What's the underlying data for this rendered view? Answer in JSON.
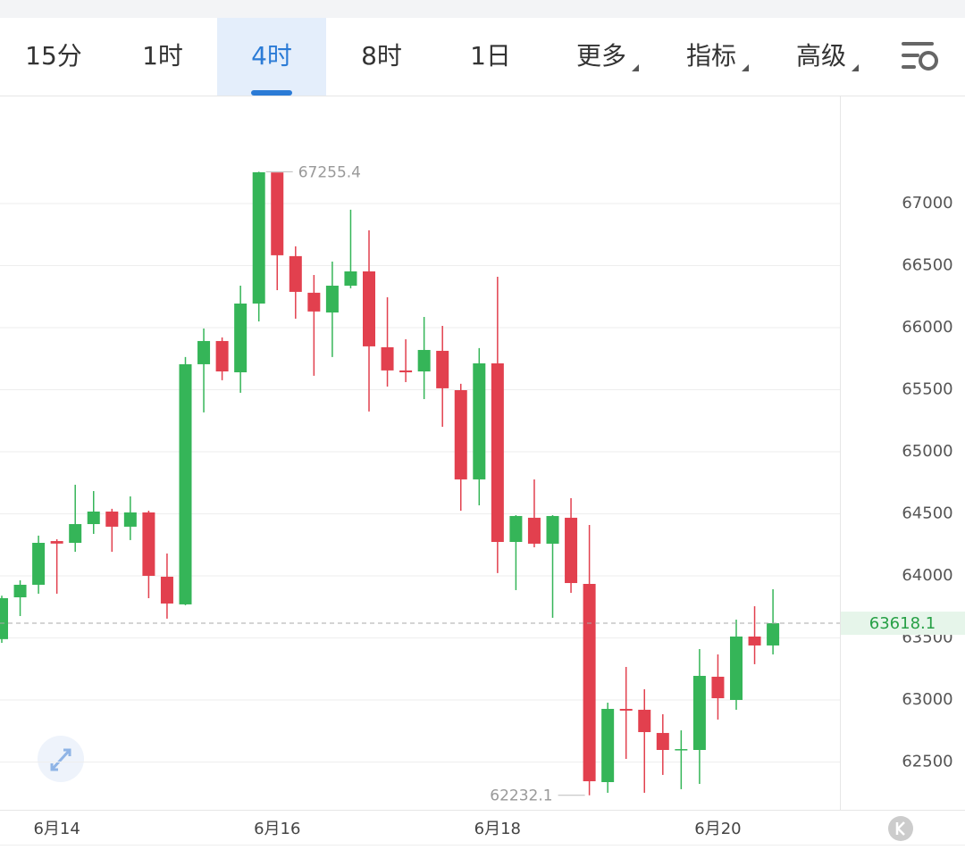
{
  "tabs": [
    {
      "label": "15分",
      "menu": false
    },
    {
      "label": "1时",
      "menu": false
    },
    {
      "label": "4时",
      "menu": false
    },
    {
      "label": "8时",
      "menu": false
    },
    {
      "label": "1日",
      "menu": false
    },
    {
      "label": "更多",
      "menu": true
    },
    {
      "label": "指标",
      "menu": true
    },
    {
      "label": "高级",
      "menu": true
    }
  ],
  "selected_tab": 2,
  "chart_data": {
    "type": "candlestick",
    "categories": [
      null,
      null,
      null,
      "6月14",
      null,
      null,
      null,
      null,
      null,
      null,
      null,
      null,
      null,
      null,
      null,
      "6月16",
      null,
      null,
      null,
      null,
      null,
      null,
      null,
      null,
      null,
      null,
      null,
      "6月18",
      null,
      null,
      null,
      null,
      null,
      null,
      null,
      null,
      null,
      null,
      null,
      "6月20",
      null,
      null,
      null
    ],
    "open": [
      63490,
      63827,
      63928,
      64280,
      64266,
      64417,
      64518,
      64396,
      64511,
      63993,
      63770,
      65705,
      65892,
      65640,
      66194,
      67250,
      66576,
      66281,
      66122,
      66338,
      66453,
      65842,
      65655,
      65647,
      65813,
      65496,
      64777,
      65712,
      64273,
      64468,
      64259,
      64468,
      63935,
      62338,
      62928,
      62921,
      62734,
      62597,
      62597,
      63187,
      63000,
      63511,
      63439
    ],
    "high": [
      63840,
      63964,
      64324,
      64295,
      64734,
      64683,
      64540,
      64640,
      64525,
      64180,
      65763,
      65993,
      65921,
      66338,
      67255.4,
      67240,
      66655,
      66424,
      66532,
      66950,
      66784,
      66245,
      65906,
      66086,
      66014,
      65547,
      65835,
      66410,
      64489,
      64777,
      64489,
      64626,
      64410,
      62978,
      63266,
      63086,
      62885,
      62755,
      63410,
      63367,
      63647,
      63755,
      63892
    ],
    "low": [
      63460,
      63676,
      63856,
      63856,
      64194,
      64338,
      64194,
      64288,
      63820,
      63655,
      63763,
      65317,
      65576,
      65475,
      66050,
      66302,
      66072,
      65612,
      65763,
      66317,
      65324,
      65525,
      65561,
      65424,
      65201,
      64525,
      64568,
      64022,
      63885,
      64230,
      63662,
      63863,
      62232.1,
      62252,
      62525,
      62252,
      62396,
      62281,
      62324,
      62842,
      62921,
      63288,
      63367
    ],
    "close": [
      63820,
      63928,
      64266,
      64260,
      64417,
      64518,
      64396,
      64511,
      64000,
      63777,
      65705,
      65892,
      65647,
      66194,
      67252,
      66583,
      66288,
      66130,
      66338,
      66453,
      65849,
      65655,
      65640,
      65820,
      65511,
      64777,
      65712,
      64273,
      64482,
      64259,
      64482,
      63942,
      62345,
      62928,
      62914,
      62741,
      62597,
      62604,
      63194,
      63014,
      63511,
      63439,
      63618.1
    ],
    "up_color": "#35b558",
    "down_color": "#e2404e",
    "ylim": [
      62115,
      67870
    ],
    "yticks": [
      62500,
      63000,
      63500,
      64000,
      64500,
      65000,
      65500,
      66000,
      66500,
      67000
    ],
    "grid": true
  }
}
